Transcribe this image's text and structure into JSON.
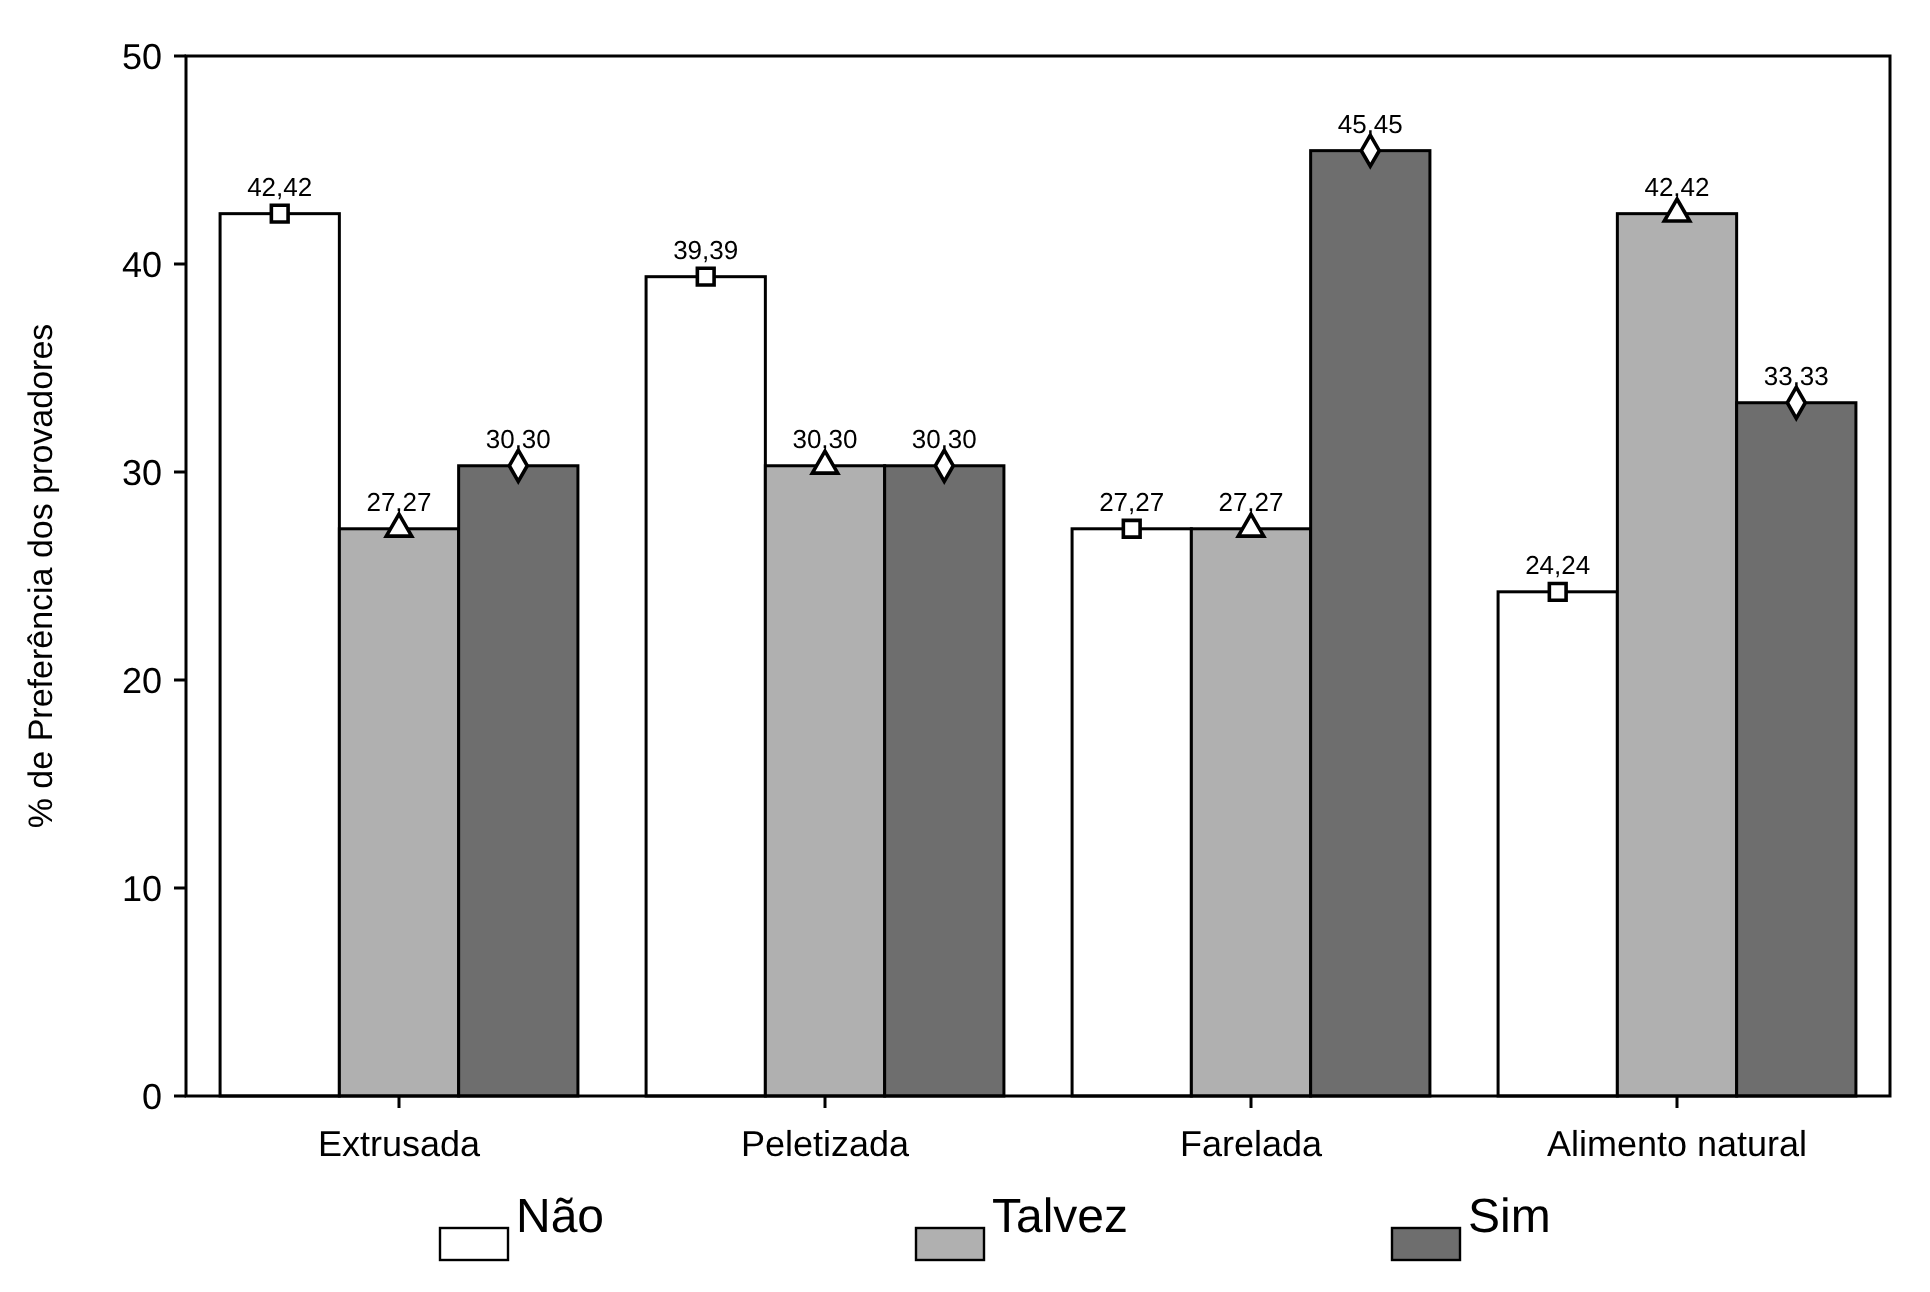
{
  "chart_data": {
    "type": "bar",
    "ylabel": "% de Preferência dos provadores",
    "categories": [
      "Extrusada",
      "Peletizada",
      "Farelada",
      "Alimento natural"
    ],
    "series": [
      {
        "name": "Não",
        "color": "#ffffff",
        "marker": "square",
        "values": [
          42.42,
          39.39,
          27.27,
          24.24
        ],
        "value_labels": [
          "42,42",
          "39,39",
          "27,27",
          "24,24"
        ]
      },
      {
        "name": "Talvez",
        "color": "#b0b0b0",
        "marker": "triangle",
        "values": [
          27.27,
          30.3,
          27.27,
          42.42
        ],
        "value_labels": [
          "27,27",
          "30,30",
          "27,27",
          "42,42"
        ]
      },
      {
        "name": "Sim",
        "color": "#6e6e6e",
        "marker": "diamond",
        "values": [
          30.3,
          30.3,
          45.45,
          33.33
        ],
        "value_labels": [
          "30,30",
          "30,30",
          "45,45",
          "33,33"
        ]
      }
    ],
    "ylim": [
      0,
      50
    ],
    "yticks": [
      0,
      10,
      20,
      30,
      40,
      50
    ],
    "grid": false,
    "legend": "bottom"
  }
}
